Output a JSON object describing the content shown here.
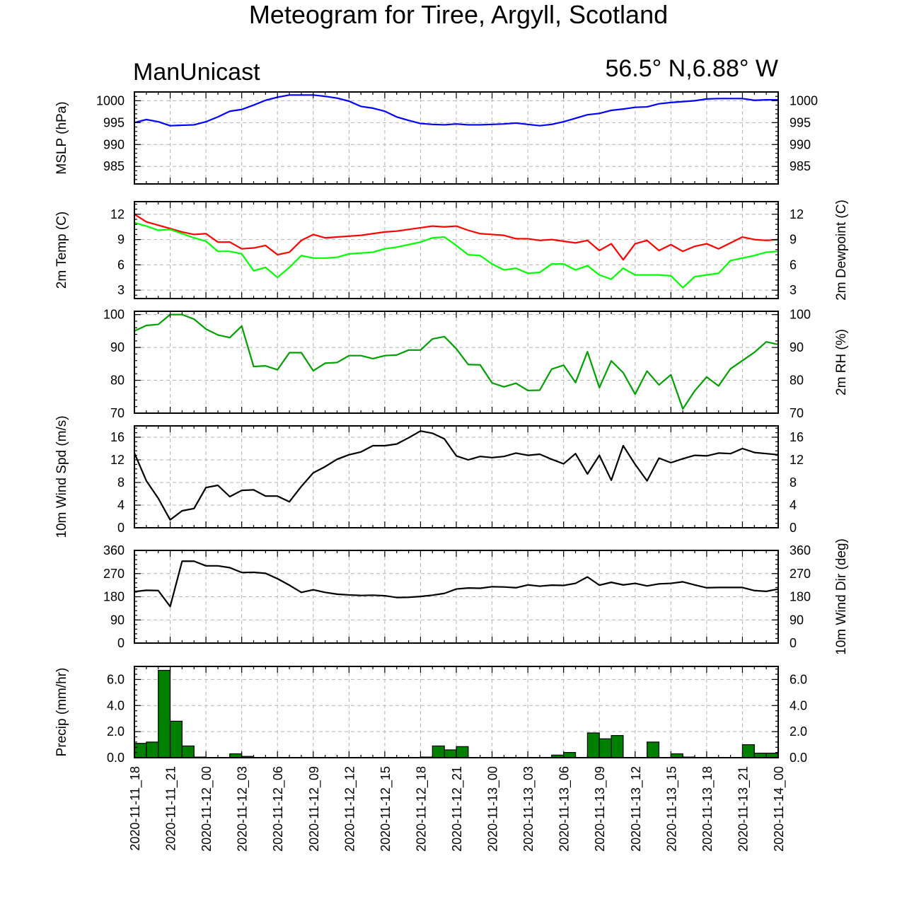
{
  "header": {
    "title": "Meteogram for Tiree, Argyll, Scotland",
    "model": "ManUnicast",
    "location": "56.5° N,6.88° W"
  },
  "chart_data": {
    "type": "line",
    "x_labels": [
      "2020-11-11_18",
      "2020-11-11_21",
      "2020-11-12_00",
      "2020-11-12_03",
      "2020-11-12_06",
      "2020-11-12_09",
      "2020-11-12_12",
      "2020-11-12_15",
      "2020-11-12_18",
      "2020-11-12_21",
      "2020-11-13_00",
      "2020-11-13_03",
      "2020-11-13_06",
      "2020-11-13_09",
      "2020-11-13_12",
      "2020-11-13_15",
      "2020-11-13_18",
      "2020-11-13_21",
      "2020-11-14_00"
    ],
    "x_hours": [
      0,
      1,
      2,
      3,
      4,
      5,
      6,
      7,
      8,
      9,
      10,
      11,
      12,
      13,
      14,
      15,
      16,
      17,
      18,
      19,
      20,
      21,
      22,
      23,
      24,
      25,
      26,
      27,
      28,
      29,
      30,
      31,
      32,
      33,
      34,
      35,
      36,
      37,
      38,
      39,
      40,
      41,
      42,
      43,
      44,
      45,
      46,
      47,
      48,
      49,
      50,
      51,
      52,
      53,
      54
    ],
    "panels": [
      {
        "id": "mslp",
        "type": "line",
        "ylabel_left": "MSLP (hPa)",
        "ylabel_right": "",
        "ylim": [
          981,
          1002
        ],
        "yticks": [
          985,
          990,
          995,
          1000
        ],
        "ytick_labels": [
          "985",
          "990",
          "995",
          "1000"
        ],
        "series": [
          {
            "color": "#0000ff",
            "values": [
              995.0,
              995.7,
              995.2,
              994.3,
              994.4,
              994.5,
              995.2,
              996.3,
              997.6,
              998.0,
              999.0,
              1000.1,
              1000.8,
              1001.3,
              1001.3,
              1001.3,
              1001.0,
              1000.6,
              999.9,
              998.7,
              998.3,
              997.6,
              996.3,
              995.5,
              994.8,
              994.6,
              994.5,
              994.7,
              994.5,
              994.5,
              994.6,
              994.7,
              994.9,
              994.6,
              994.3,
              994.6,
              995.2,
              996.0,
              996.8,
              997.1,
              997.8,
              998.1,
              998.5,
              998.6,
              999.3,
              999.6,
              999.8,
              1000.0,
              1000.4,
              1000.5,
              1000.5,
              1000.5,
              1000.1,
              1000.2,
              1000.2
            ]
          }
        ]
      },
      {
        "id": "temp",
        "type": "line",
        "ylabel_left": "2m Temp (C)",
        "ylabel_right": "2m Dewpoint (C)",
        "ylim": [
          2,
          13.5
        ],
        "yticks": [
          3,
          6,
          9,
          12
        ],
        "ytick_labels": [
          "3",
          "6",
          "9",
          "12"
        ],
        "series": [
          {
            "color": "#ff0000",
            "values": [
              12.0,
              11.1,
              10.7,
              10.3,
              9.9,
              9.6,
              9.7,
              8.7,
              8.7,
              7.9,
              8.0,
              8.3,
              7.2,
              7.5,
              8.9,
              9.6,
              9.2,
              9.3,
              9.4,
              9.5,
              9.7,
              9.9,
              10.0,
              10.2,
              10.4,
              10.6,
              10.5,
              10.6,
              10.1,
              9.7,
              9.6,
              9.5,
              9.1,
              9.1,
              8.9,
              9.0,
              8.8,
              8.6,
              8.9,
              7.7,
              8.5,
              6.6,
              8.5,
              8.9,
              7.7,
              8.4,
              7.6,
              8.2,
              8.5,
              7.9,
              8.6,
              9.3,
              9.0,
              8.9,
              9.0
            ]
          },
          {
            "color": "#00ff00",
            "values": [
              11.0,
              10.6,
              10.1,
              10.2,
              9.7,
              9.2,
              8.8,
              7.6,
              7.6,
              7.3,
              5.3,
              5.7,
              4.5,
              5.7,
              7.1,
              6.8,
              6.8,
              6.9,
              7.3,
              7.4,
              7.5,
              7.9,
              8.1,
              8.4,
              8.7,
              9.2,
              9.3,
              8.3,
              7.2,
              7.1,
              6.1,
              5.4,
              5.6,
              5.0,
              5.1,
              6.1,
              6.1,
              5.4,
              5.9,
              4.8,
              4.3,
              5.6,
              4.8,
              4.8,
              4.8,
              4.7,
              3.3,
              4.6,
              4.8,
              5.0,
              6.5,
              6.8,
              7.1,
              7.5,
              7.6
            ]
          }
        ]
      },
      {
        "id": "rh",
        "type": "line",
        "ylabel_left": "",
        "ylabel_right": "2m RH (%)",
        "ylim": [
          70,
          101
        ],
        "yticks": [
          70,
          80,
          90,
          100
        ],
        "ytick_labels": [
          "70",
          "80",
          "90",
          "100"
        ],
        "series": [
          {
            "color": "#00a000",
            "values": [
              95.0,
              96.7,
              97.0,
              100.0,
              100.0,
              98.6,
              95.6,
              93.8,
              93.0,
              96.5,
              84.2,
              84.4,
              83.2,
              88.4,
              88.4,
              82.9,
              85.2,
              85.4,
              87.5,
              87.5,
              86.6,
              87.5,
              87.7,
              89.2,
              89.2,
              92.6,
              93.3,
              89.6,
              84.8,
              84.7,
              79.2,
              78.0,
              79.1,
              76.9,
              77.0,
              83.4,
              84.6,
              79.3,
              88.7,
              77.8,
              85.9,
              82.3,
              75.8,
              82.8,
              78.6,
              81.7,
              71.3,
              76.8,
              81.0,
              78.3,
              83.5,
              86.0,
              88.5,
              91.7,
              90.9
            ]
          }
        ]
      },
      {
        "id": "wspd",
        "type": "line",
        "ylabel_left": "10m Wind Spd (m/s)",
        "ylabel_right": "",
        "ylim": [
          0,
          18
        ],
        "yticks": [
          0,
          4,
          8,
          12,
          16
        ],
        "ytick_labels": [
          "0",
          "4",
          "8",
          "12",
          "16"
        ],
        "series": [
          {
            "color": "#000000",
            "values": [
              13.2,
              8.3,
              5.2,
              1.4,
              3.0,
              3.4,
              7.1,
              7.5,
              5.5,
              6.6,
              6.7,
              5.6,
              5.6,
              4.6,
              7.3,
              9.7,
              10.8,
              12.1,
              12.9,
              13.4,
              14.5,
              14.5,
              14.8,
              15.9,
              17.1,
              16.7,
              15.7,
              12.7,
              12.0,
              12.6,
              12.4,
              12.6,
              13.2,
              12.8,
              13.0,
              12.1,
              11.3,
              13.1,
              9.5,
              12.8,
              8.4,
              14.5,
              11.2,
              8.3,
              12.3,
              11.5,
              12.2,
              12.8,
              12.7,
              13.2,
              13.1,
              14.0,
              13.3,
              13.1,
              12.9
            ]
          }
        ]
      },
      {
        "id": "wdir",
        "type": "line",
        "ylabel_left": "",
        "ylabel_right": "10m Wind Dir (deg)",
        "ylim": [
          0,
          360
        ],
        "yticks": [
          0,
          90,
          180,
          270,
          360
        ],
        "ytick_labels": [
          "0",
          "90",
          "180",
          "270",
          "360"
        ],
        "series": [
          {
            "color": "#000000",
            "values": [
              200,
              205,
              204,
              142,
              318,
              318,
              300,
              300,
              293,
              274,
              275,
              271,
              250,
              225,
              197,
              207,
              197,
              190,
              187,
              185,
              186,
              184,
              177,
              178,
              181,
              186,
              193,
              210,
              214,
              213,
              219,
              218,
              215,
              226,
              221,
              225,
              224,
              232,
              257,
              225,
              236,
              226,
              232,
              222,
              230,
              232,
              238,
              226,
              215,
              216,
              216,
              216,
              204,
              201,
              210
            ]
          }
        ]
      },
      {
        "id": "precip",
        "type": "bar",
        "ylabel_left": "Precip (mm/hr)",
        "ylabel_right": "",
        "ylim": [
          0,
          7
        ],
        "yticks": [
          0,
          2,
          4,
          6
        ],
        "ytick_labels": [
          "0.0",
          "2.0",
          "4.0",
          "6.0"
        ],
        "series": [
          {
            "color": "#008000",
            "values": [
              1.1,
              1.2,
              6.7,
              2.8,
              0.9,
              0.05,
              0,
              0,
              0.3,
              0.1,
              0,
              0,
              0,
              0,
              0,
              0,
              0,
              0,
              0,
              0,
              0,
              0,
              0,
              0,
              0.05,
              0.9,
              0.6,
              0.85,
              0,
              0,
              0,
              0,
              0,
              0,
              0,
              0.2,
              0.4,
              0,
              1.9,
              1.45,
              1.7,
              0,
              0,
              1.2,
              0,
              0.3,
              0.05,
              0,
              0,
              0,
              0,
              1.0,
              0.35,
              0.35,
              0.1
            ]
          }
        ]
      }
    ]
  }
}
